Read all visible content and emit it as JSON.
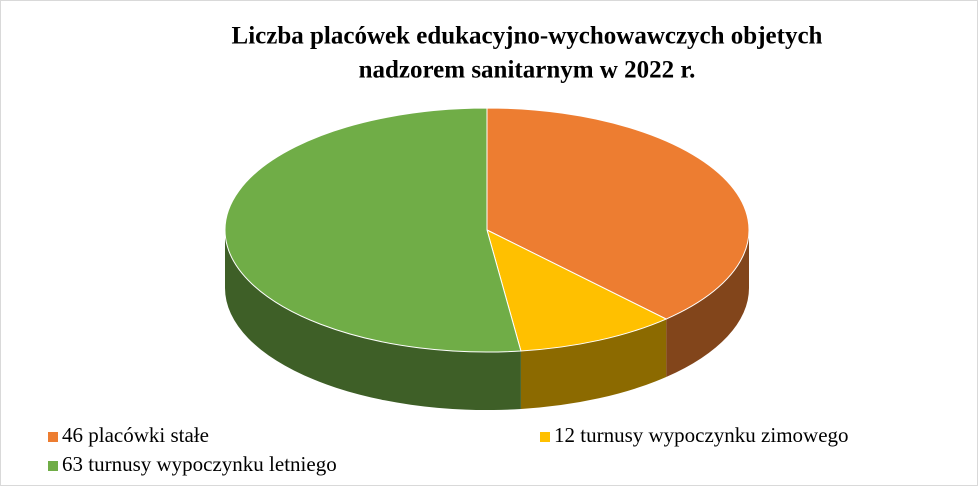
{
  "chart_data": {
    "type": "pie3d",
    "title": [
      "Liczba placówek edukacyjno-wychowawczych  objetych",
      "nadzorem sanitarnym w 2022 r."
    ],
    "categories": [
      "46 placówki stałe",
      "12 turnusy wypoczynku zimowego",
      "63 turnusy wypoczynku letniego"
    ],
    "values": [
      46,
      12,
      63
    ],
    "colors": [
      "#ED7D31",
      "#FFC000",
      "#70AD47"
    ],
    "legend": "bottom"
  }
}
